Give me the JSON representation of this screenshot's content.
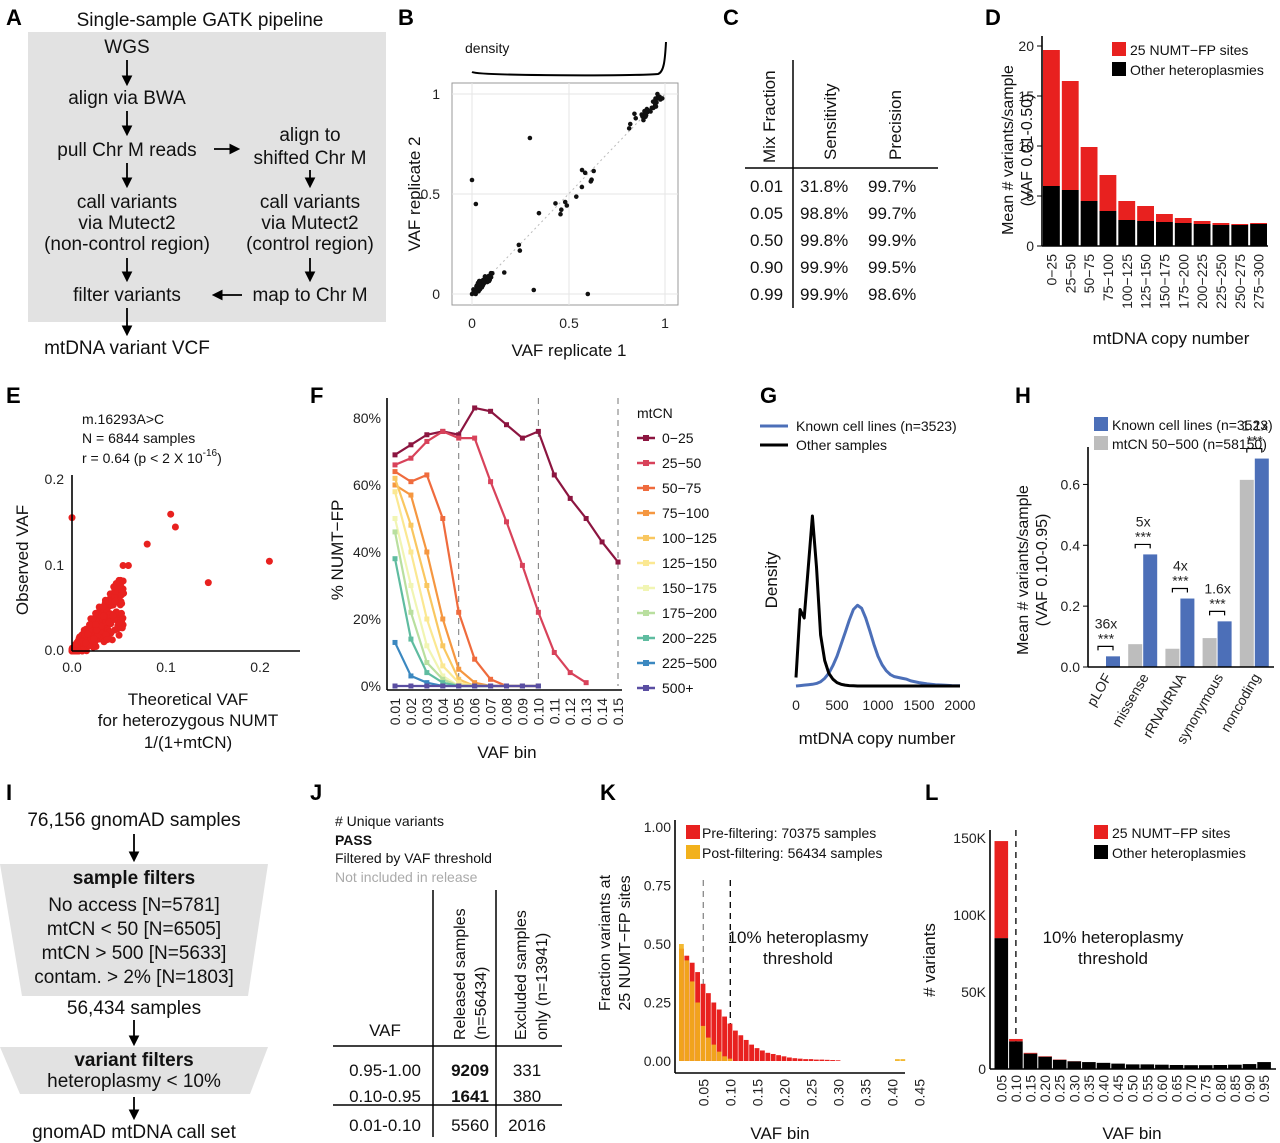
{
  "panels": {
    "A": {
      "label": "A",
      "title": "Single-sample GATK pipeline",
      "steps": [
        "WGS",
        "align via BWA",
        "pull Chr M reads",
        "align to",
        "shifted Chr M",
        "call variants",
        "via Mutect2",
        "(non-control region)",
        "call variants",
        "via Mutect2",
        "(control region)",
        "filter variants",
        "map to Chr M",
        "mtDNA variant VCF"
      ]
    },
    "B": {
      "label": "B",
      "density_label": "density",
      "xlabel": "VAF replicate 1",
      "ylabel": "VAF replicate 2",
      "xticks": [
        "0",
        "0.5",
        "1"
      ],
      "yticks": [
        "0",
        "0.5",
        "1"
      ]
    },
    "C": {
      "label": "C",
      "headers": [
        "Mix Fraction",
        "Sensitivity",
        "Precision"
      ],
      "rows": [
        [
          "0.01",
          "31.8%",
          "99.7%"
        ],
        [
          "0.05",
          "98.8%",
          "99.7%"
        ],
        [
          "0.50",
          "99.8%",
          "99.9%"
        ],
        [
          "0.90",
          "99.9%",
          "99.5%"
        ],
        [
          "0.99",
          "99.9%",
          "98.6%"
        ]
      ]
    },
    "D": {
      "label": "D",
      "xlabel": "mtDNA copy number",
      "ylabel1": "Mean # variants/sample",
      "ylabel2": "(VAF 0.01-0.50)",
      "legend": [
        "25 NUMT−FP sites",
        "Other heteroplasmies"
      ],
      "yticks": [
        "0",
        "5",
        "10",
        "15",
        "20"
      ]
    },
    "E": {
      "label": "E",
      "annot": [
        "m.16293A>C",
        "N = 6844 samples"
      ],
      "annot_r": "r = 0.64 (p < 2 X 10",
      "annot_exp": "-16",
      "annot_close": ")",
      "ylabel": "Observed VAF",
      "xlabel": [
        "Theoretical VAF",
        "for heterozygous NUMT",
        "1/(1+mtCN)"
      ],
      "xticks": [
        "0.0",
        "0.1",
        "0.2"
      ],
      "yticks": [
        "0.0",
        "0.1",
        "0.2"
      ]
    },
    "F": {
      "label": "F",
      "ylabel": "% NUMT−FP",
      "xlabel": "VAF bin",
      "legend_title": "mtCN",
      "yticks": [
        "0%",
        "20%",
        "40%",
        "60%",
        "80%"
      ],
      "xticks": [
        "0.01",
        "0.02",
        "0.03",
        "0.04",
        "0.05",
        "0.06",
        "0.07",
        "0.08",
        "0.09",
        "0.10",
        "0.11",
        "0.12",
        "0.13",
        "0.14",
        "0.15"
      ]
    },
    "G": {
      "label": "G",
      "legend": [
        "Known cell lines (n=3523)",
        "Other samples"
      ],
      "ylabel": "Density",
      "xlabel": "mtDNA copy number",
      "xticks": [
        "0",
        "500",
        "1000",
        "1500",
        "2000"
      ]
    },
    "H": {
      "label": "H",
      "legend": [
        "Known cell lines (n=3523)",
        "mtCN 50−500 (n=58150)"
      ],
      "ylabel1": "Mean # variants/sample",
      "ylabel2": "(VAF 0.10-0.95)",
      "yticks": [
        "0.0",
        "0.2",
        "0.4",
        "0.6"
      ],
      "folds": [
        "36x",
        "5x",
        "4x",
        "1.6x",
        "1.1x"
      ],
      "stars": "***"
    },
    "I": {
      "label": "I",
      "top": "76,156 gnomAD samples",
      "sample_title": "sample filters",
      "sample_items": [
        "No access [N=5781]",
        "mtCN < 50 [N=6505]",
        "mtCN > 500 [N=5633]",
        "contam. > 2% [N=1803]"
      ],
      "mid": "56,434 samples",
      "variant_title": "variant filters",
      "variant_item": "heteroplasmy < 10%",
      "bottom": "gnomAD mtDNA call set"
    },
    "J": {
      "label": "J",
      "legend": [
        "# Unique variants",
        "PASS",
        "Filtered by VAF threshold",
        "Not included in release"
      ],
      "col_vaf": "VAF",
      "col1a": "Released samples",
      "col1b": "(n=56434)",
      "col2a": "Excluded samples",
      "col2b": "only (n=13941)",
      "rows": [
        [
          "0.95-1.00",
          "9209",
          "331"
        ],
        [
          "0.10-0.95",
          "1641",
          "380"
        ],
        [
          "0.01-0.10",
          "5560",
          "2016"
        ]
      ]
    },
    "K": {
      "label": "K",
      "legend": [
        "Pre-filtering: 70375 samples",
        "Post-filtering: 56434 samples"
      ],
      "ylabel1": "Fraction variants at",
      "ylabel2": "25 NUMT−FP sites",
      "xlabel": "VAF bin",
      "threshold": [
        "10% heteroplasmy",
        "threshold"
      ],
      "yticks": [
        "0.00",
        "0.25",
        "0.50",
        "0.75",
        "1.00"
      ],
      "xticks": [
        "0.05",
        "0.10",
        "0.15",
        "0.20",
        "0.25",
        "0.30",
        "0.35",
        "0.40",
        "0.45"
      ]
    },
    "L": {
      "label": "L",
      "legend": [
        "25 NUMT−FP sites",
        "Other heteroplasmies"
      ],
      "ylabel": "# variants",
      "xlabel": "VAF bin",
      "threshold": [
        "10% heteroplasmy",
        "threshold"
      ],
      "yticks": [
        "0",
        "50K",
        "100K",
        "150K"
      ]
    }
  },
  "colors": {
    "red": "#e8211f",
    "black": "#000000",
    "blue": "#4c6fb8",
    "grey": "#bdbdbd",
    "orange": "#f2b11c",
    "boxgrey": "#e2e2e2"
  },
  "chart_data": [
    {
      "panel": "D",
      "type": "bar",
      "stacked": true,
      "categories": [
        "0−25",
        "25−50",
        "50−75",
        "75−100",
        "100−125",
        "125−150",
        "150−175",
        "175−200",
        "200−225",
        "225−250",
        "250−275",
        "275−300"
      ],
      "series": [
        {
          "name": "Other heteroplasmies",
          "values": [
            6.0,
            5.6,
            4.5,
            3.5,
            2.6,
            2.5,
            2.4,
            2.3,
            2.2,
            2.1,
            2.1,
            2.2
          ]
        },
        {
          "name": "25 NUMT−FP sites",
          "values": [
            13.6,
            10.9,
            5.4,
            3.6,
            1.9,
            1.5,
            0.8,
            0.5,
            0.3,
            0.2,
            0.1,
            0.1
          ]
        }
      ],
      "ylim": [
        0,
        21
      ]
    },
    {
      "panel": "F",
      "type": "line",
      "x": [
        0.01,
        0.02,
        0.03,
        0.04,
        0.05,
        0.06,
        0.07,
        0.08,
        0.09,
        0.1,
        0.11,
        0.12,
        0.13,
        0.14,
        0.15
      ],
      "series": [
        {
          "name": "0−25",
          "color": "#8c1540",
          "values": [
            69,
            72,
            75,
            76,
            75,
            83,
            82,
            78,
            74,
            76,
            63,
            56,
            50,
            43,
            37
          ]
        },
        {
          "name": "25−50",
          "color": "#d8425a",
          "values": [
            66,
            68,
            73,
            76,
            74,
            74,
            61,
            49,
            36,
            22,
            10,
            4,
            1,
            null,
            null
          ]
        },
        {
          "name": "50−75",
          "color": "#ef6b3d",
          "values": [
            64,
            61,
            63,
            50,
            22,
            8,
            2,
            0,
            0,
            0,
            null,
            null,
            null,
            null,
            null
          ]
        },
        {
          "name": "75−100",
          "color": "#f59740",
          "values": [
            60,
            57,
            40,
            20,
            5,
            1,
            0,
            0,
            0,
            0,
            null,
            null,
            null,
            null,
            null
          ]
        },
        {
          "name": "100−125",
          "color": "#f9c760",
          "values": [
            62,
            48,
            30,
            12,
            2,
            0,
            0,
            0,
            0,
            null,
            null,
            null,
            null,
            null,
            null
          ]
        },
        {
          "name": "125−150",
          "color": "#fbe892",
          "values": [
            58,
            40,
            20,
            6,
            1,
            0,
            0,
            0,
            null,
            null,
            null,
            null,
            null,
            null,
            null
          ]
        },
        {
          "name": "150−175",
          "color": "#f1f5b3",
          "values": [
            50,
            30,
            12,
            3,
            0,
            0,
            0,
            null,
            null,
            null,
            null,
            null,
            null,
            null,
            null
          ]
        },
        {
          "name": "175−200",
          "color": "#b9df9f",
          "values": [
            46,
            22,
            7,
            2,
            0,
            0,
            0,
            null,
            null,
            null,
            null,
            null,
            null,
            null,
            null
          ]
        },
        {
          "name": "200−225",
          "color": "#5fbca0",
          "values": [
            38,
            14,
            4,
            1,
            0,
            0,
            0,
            null,
            null,
            null,
            null,
            null,
            null,
            null,
            null
          ]
        },
        {
          "name": "225−500",
          "color": "#3b88c0",
          "values": [
            13,
            3,
            1,
            0,
            0,
            0,
            0,
            0,
            0,
            0,
            null,
            null,
            null,
            null,
            null
          ]
        },
        {
          "name": "500+",
          "color": "#5a4ea2",
          "values": [
            0,
            0,
            0,
            0,
            0,
            0,
            0,
            0,
            0,
            0,
            null,
            null,
            null,
            null,
            null
          ]
        }
      ],
      "ylim": [
        0,
        85
      ]
    },
    {
      "panel": "G",
      "type": "line",
      "x": [
        0,
        50,
        100,
        150,
        200,
        250,
        300,
        350,
        400,
        450,
        500,
        550,
        600,
        650,
        700,
        750,
        800,
        850,
        900,
        950,
        1000,
        1050,
        1100,
        1150,
        1200,
        1250,
        1300,
        1350,
        1400,
        1500,
        1600,
        1700,
        1800,
        1900,
        2000
      ],
      "series": [
        {
          "name": "Known cell lines (n=3523)",
          "values": [
            0,
            0.1,
            0.2,
            0.3,
            0.4,
            0.6,
            1.0,
            1.8,
            3.0,
            4.8,
            7.0,
            9.8,
            12.6,
            15.5,
            18.0,
            19.0,
            18.3,
            16.0,
            13.0,
            9.8,
            7.0,
            5.0,
            3.6,
            2.7,
            2.2,
            2.0,
            1.8,
            1.6,
            1.2,
            0.8,
            0.5,
            0.3,
            0.2,
            0.1,
            0.05
          ]
        },
        {
          "name": "Other samples",
          "values": [
            2,
            18,
            16,
            28,
            40,
            28,
            12,
            6,
            3,
            1.6,
            0.8,
            0.4,
            0.2,
            0.1,
            0.05,
            0,
            0,
            0,
            0,
            0,
            0,
            0,
            0,
            0,
            0,
            0,
            0,
            0,
            0,
            0,
            0,
            0,
            0,
            0,
            0
          ]
        }
      ]
    },
    {
      "panel": "H",
      "type": "bar",
      "categories": [
        "pLOF",
        "missense",
        "rRNA/tRNA",
        "synonymous",
        "noncoding"
      ],
      "series": [
        {
          "name": "mtCN 50−500 (n=58150)",
          "values": [
            0.001,
            0.075,
            0.06,
            0.095,
            0.615
          ]
        },
        {
          "name": "Known cell lines (n=3523)",
          "values": [
            0.035,
            0.37,
            0.225,
            0.15,
            0.685
          ]
        }
      ],
      "ylim": [
        0,
        0.72
      ]
    },
    {
      "panel": "K",
      "type": "bar",
      "x": [
        0.01,
        0.02,
        0.03,
        0.04,
        0.05,
        0.06,
        0.07,
        0.08,
        0.09,
        0.1,
        0.11,
        0.12,
        0.13,
        0.14,
        0.15,
        0.16,
        0.17,
        0.18,
        0.19,
        0.2,
        0.21,
        0.22,
        0.23,
        0.24,
        0.25,
        0.26,
        0.27,
        0.28,
        0.29,
        0.3,
        0.41,
        0.42
      ],
      "series": [
        {
          "name": "Pre-filtering: 70375 samples",
          "values": [
            0.48,
            0.45,
            0.42,
            0.38,
            0.33,
            0.29,
            0.25,
            0.22,
            0.19,
            0.16,
            0.13,
            0.11,
            0.09,
            0.07,
            0.055,
            0.045,
            0.035,
            0.03,
            0.025,
            0.02,
            0.015,
            0.012,
            0.01,
            0.008,
            0.008,
            0.006,
            0.006,
            0.005,
            0.004,
            0.003,
            0,
            0
          ]
        },
        {
          "name": "Post-filtering: 56434 samples",
          "values": [
            0.5,
            0.43,
            0.34,
            0.25,
            0.15,
            0.1,
            0.07,
            0.04,
            0.02,
            0.01,
            0,
            0,
            0,
            0,
            0,
            0,
            0,
            0,
            0,
            0,
            0,
            0,
            0,
            0,
            0,
            0,
            0,
            0,
            0,
            0,
            0.008,
            0.008
          ]
        }
      ],
      "ylim": [
        0,
        1.05
      ]
    },
    {
      "panel": "L",
      "type": "bar",
      "stacked": true,
      "categories": [
        "0.05",
        "0.10",
        "0.15",
        "0.20",
        "0.25",
        "0.30",
        "0.35",
        "0.40",
        "0.45",
        "0.50",
        "0.55",
        "0.60",
        "0.65",
        "0.70",
        "0.75",
        "0.80",
        "0.85",
        "0.90",
        "0.95"
      ],
      "series": [
        {
          "name": "Other heteroplasmies",
          "values": [
            85000,
            18000,
            10000,
            8000,
            6000,
            5000,
            4500,
            4000,
            3500,
            3000,
            3000,
            2800,
            2600,
            2500,
            2500,
            2600,
            2800,
            3200,
            4500
          ]
        },
        {
          "name": "25 NUMT−FP sites",
          "values": [
            63000,
            1500,
            500,
            300,
            200,
            100,
            0,
            0,
            0,
            0,
            0,
            0,
            0,
            0,
            0,
            0,
            0,
            0,
            0
          ]
        }
      ],
      "ylim": [
        0,
        155000
      ]
    }
  ]
}
